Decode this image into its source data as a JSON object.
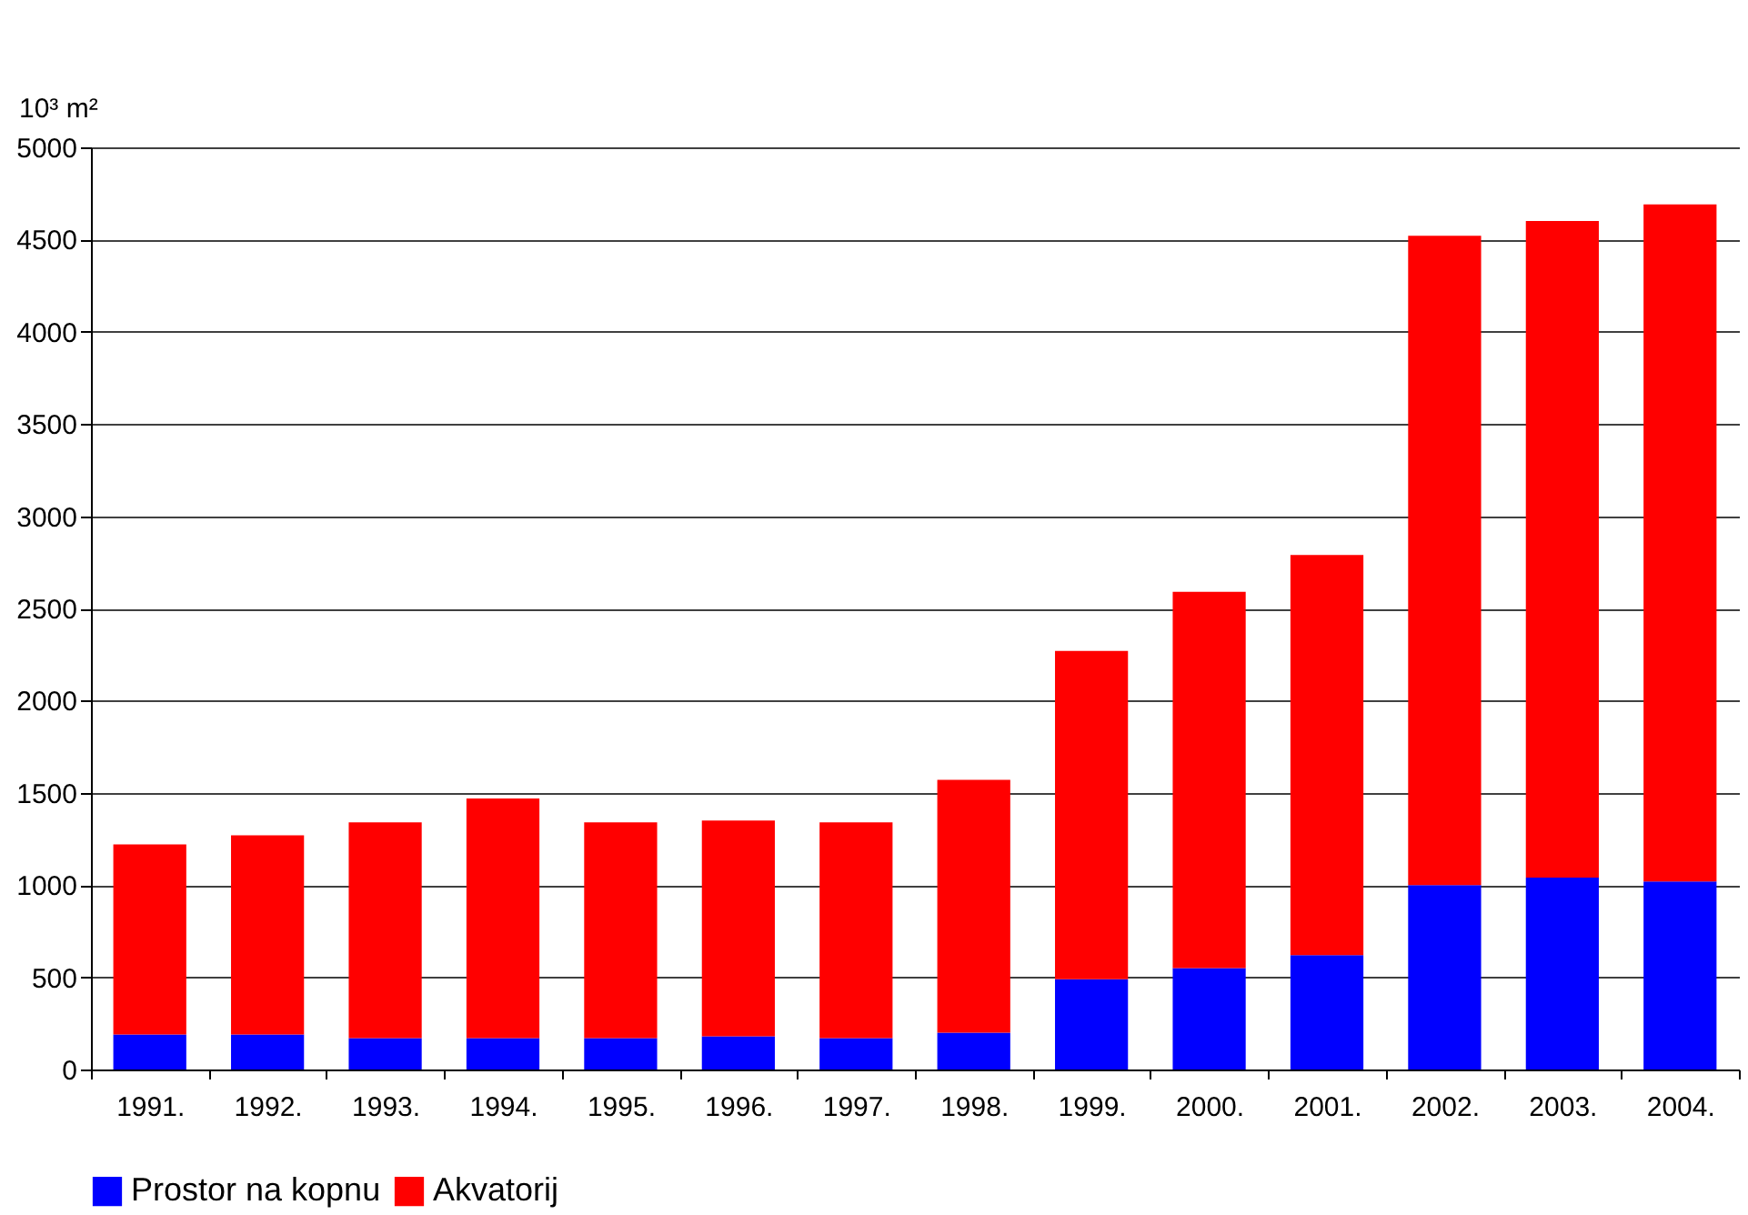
{
  "chart_data": {
    "type": "bar",
    "stacked": true,
    "ylabel": "10³ m²",
    "categories": [
      "1991.",
      "1992.",
      "1993.",
      "1994.",
      "1995.",
      "1996.",
      "1997.",
      "1998.",
      "1999.",
      "2000.",
      "2001.",
      "2002.",
      "2003.",
      "2004."
    ],
    "series": [
      {
        "name": "Prostor na kopnu",
        "color": "#0000ff",
        "values": [
          190,
          190,
          170,
          170,
          170,
          180,
          170,
          200,
          490,
          550,
          620,
          1000,
          1040,
          1020
        ]
      },
      {
        "name": "Akvatorij",
        "color": "#ff0000",
        "values": [
          1030,
          1080,
          1170,
          1300,
          1170,
          1170,
          1170,
          1370,
          1780,
          2040,
          2170,
          3520,
          3560,
          3670
        ]
      }
    ],
    "ylim": [
      0,
      5000
    ],
    "yticks": [
      0,
      500,
      1000,
      1500,
      2000,
      2500,
      3000,
      3500,
      4000,
      4500,
      5000
    ],
    "grid": "y",
    "legend": "bottom"
  }
}
